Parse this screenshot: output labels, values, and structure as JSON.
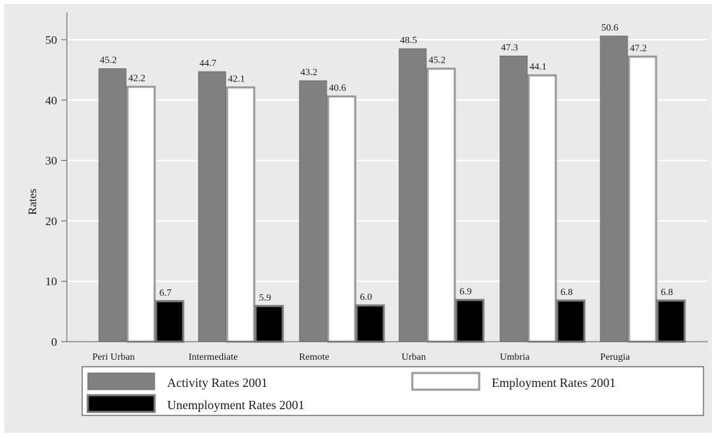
{
  "chart_data": {
    "type": "bar",
    "title": "",
    "xlabel": "",
    "ylabel": "Rates",
    "ylim": [
      0,
      55
    ],
    "yticks": [
      0,
      10,
      20,
      30,
      40,
      50
    ],
    "grid": true,
    "legend_position": "bottom",
    "categories": [
      "Peri Urban",
      "Intermediate",
      "Remote",
      "Urban",
      "Umbria",
      "Perugia"
    ],
    "series": [
      {
        "name": "Activity Rates 2001",
        "values": [
          45.2,
          44.7,
          43.2,
          48.5,
          47.3,
          50.6
        ],
        "color": "#808080",
        "labels": [
          "45.2",
          "44.7",
          "43.2",
          "48.5",
          "47.3",
          "50.6"
        ]
      },
      {
        "name": "Employment Rates 2001",
        "values": [
          42.2,
          42.1,
          40.6,
          45.2,
          44.1,
          47.2
        ],
        "color": "#ffffff",
        "labels": [
          "42.2",
          "42.1",
          "40.6",
          "45.2",
          "44.1",
          "47.2"
        ]
      },
      {
        "name": "Unemployment Rates 2001",
        "values": [
          6.7,
          5.9,
          6.0,
          6.9,
          6.8,
          6.8
        ],
        "color": "#000000",
        "labels": [
          "6.7",
          "5.9",
          "6.0",
          "6.9",
          "6.8",
          "6.8"
        ]
      }
    ]
  }
}
